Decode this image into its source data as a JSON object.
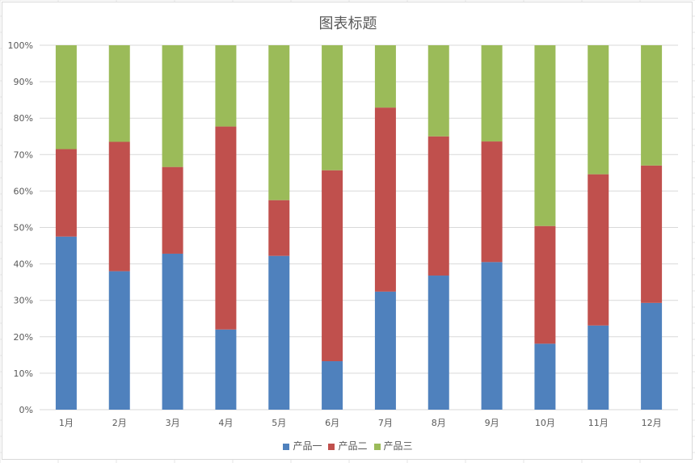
{
  "chart_data": {
    "type": "bar",
    "stacked": "percent",
    "title": "图表标题",
    "categories": [
      "1月",
      "2月",
      "3月",
      "4月",
      "5月",
      "6月",
      "7月",
      "8月",
      "9月",
      "10月",
      "11月",
      "12月"
    ],
    "series": [
      {
        "name": "产品一",
        "color": "#4f81bd",
        "values": [
          47.5,
          38,
          42.8,
          22,
          42.2,
          13.3,
          32.4,
          36.8,
          40.5,
          18.1,
          23.1,
          29.3
        ]
      },
      {
        "name": "产品二",
        "color": "#c0504d",
        "values": [
          24,
          35.5,
          23.8,
          55.7,
          15.3,
          52.4,
          50.5,
          38.2,
          33.1,
          32.3,
          41.5,
          37.7
        ]
      },
      {
        "name": "产品三",
        "color": "#9bbb59",
        "values": [
          28.5,
          26.5,
          33.4,
          22.3,
          42.5,
          34.3,
          17.1,
          25,
          26.4,
          49.6,
          35.4,
          33
        ]
      }
    ],
    "yticks": [
      "0%",
      "10%",
      "20%",
      "30%",
      "40%",
      "50%",
      "60%",
      "70%",
      "80%",
      "90%",
      "100%"
    ],
    "ylim": [
      0,
      100
    ],
    "grid": true,
    "legend": "bottom"
  }
}
